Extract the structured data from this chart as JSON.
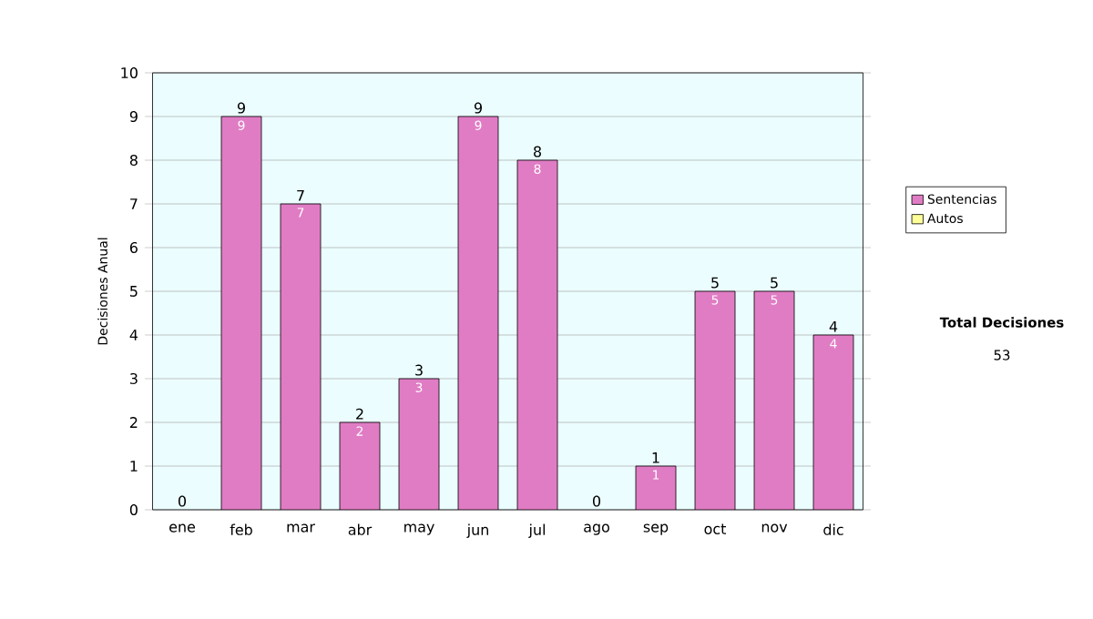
{
  "chart_data": {
    "type": "bar",
    "stacked": true,
    "ylabel": "Decisiones Anual",
    "categories": [
      "ene",
      "feb",
      "mar",
      "abr",
      "may",
      "jun",
      "jul",
      "ago",
      "sep",
      "oct",
      "nov",
      "dic"
    ],
    "series": [
      {
        "name": "Sentencias",
        "color": "#e07cc4",
        "values": [
          0,
          9,
          7,
          2,
          3,
          9,
          8,
          0,
          1,
          5,
          5,
          4
        ],
        "value_labels": [
          null,
          "9",
          "7",
          "2",
          "3",
          "9",
          "8",
          null,
          "1",
          "5",
          "5",
          "4"
        ]
      },
      {
        "name": "Autos",
        "color": "#ffff99",
        "values": [
          0,
          0,
          0,
          0,
          0,
          0,
          0,
          0,
          0,
          0,
          0,
          0
        ]
      }
    ],
    "totals": [
      "0",
      "9",
      "7",
      "2",
      "3",
      "9",
      "8",
      "0",
      "1",
      "5",
      "5",
      "4"
    ],
    "ylim": [
      0,
      10
    ],
    "yticks": [
      0,
      1,
      2,
      3,
      4,
      5,
      6,
      7,
      8,
      9,
      10
    ],
    "grid": "y",
    "legend": "right",
    "annotations": [
      "Total Decisiones",
      "53"
    ]
  }
}
